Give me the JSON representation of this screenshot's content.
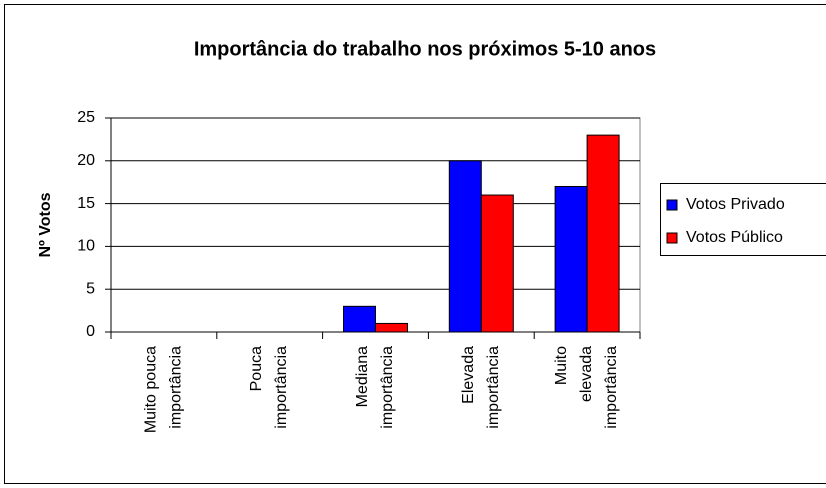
{
  "chart_data": {
    "type": "bar",
    "title": "Importância do trabalho nos próximos 5-10 anos",
    "y_label": "Nº Votos",
    "categories": [
      "Muito pouca importância",
      "Pouca importância",
      "Mediana importância",
      "Elevada importância",
      "Muito elevada importância"
    ],
    "series": [
      {
        "name": "Votos Privado",
        "color": "#0000ff",
        "values": [
          0,
          0,
          3,
          20,
          17
        ]
      },
      {
        "name": "Votos Público",
        "color": "#ff0000",
        "values": [
          0,
          0,
          1,
          16,
          23
        ]
      }
    ],
    "ylim": [
      0,
      25
    ],
    "yticks": [
      0,
      5,
      10,
      15,
      20,
      25
    ],
    "grid": true,
    "legend": "right"
  }
}
